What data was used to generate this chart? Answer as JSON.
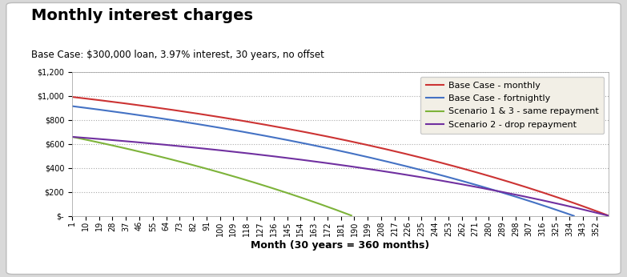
{
  "title": "Monthly interest charges",
  "subtitle": "Base Case: $300,000 loan, 3.97% interest, 30 years, no offset",
  "xlabel": "Month (30 years = 360 months)",
  "loan": 300000,
  "annual_rate": 0.0397,
  "months": 360,
  "legend_labels": [
    "Base Case - monthly",
    "Base Case - fortnightly",
    "Scenario 1 & 3 - same repayment",
    "Scenario 2 - drop repayment"
  ],
  "line_colors": [
    "#CC3333",
    "#4472C4",
    "#7DB33A",
    "#7030A0"
  ],
  "background_color": "#D9D9D9",
  "plot_bg": "#FFFFFF",
  "legend_bg": "#F2EFE6",
  "ylim": [
    0,
    1200
  ],
  "yticks": [
    0,
    200,
    400,
    600,
    800,
    1000,
    1200
  ],
  "xtick_step": 9,
  "title_fontsize": 14,
  "subtitle_fontsize": 8.5,
  "axis_label_fontsize": 9,
  "tick_fontsize": 7,
  "legend_fontsize": 8
}
